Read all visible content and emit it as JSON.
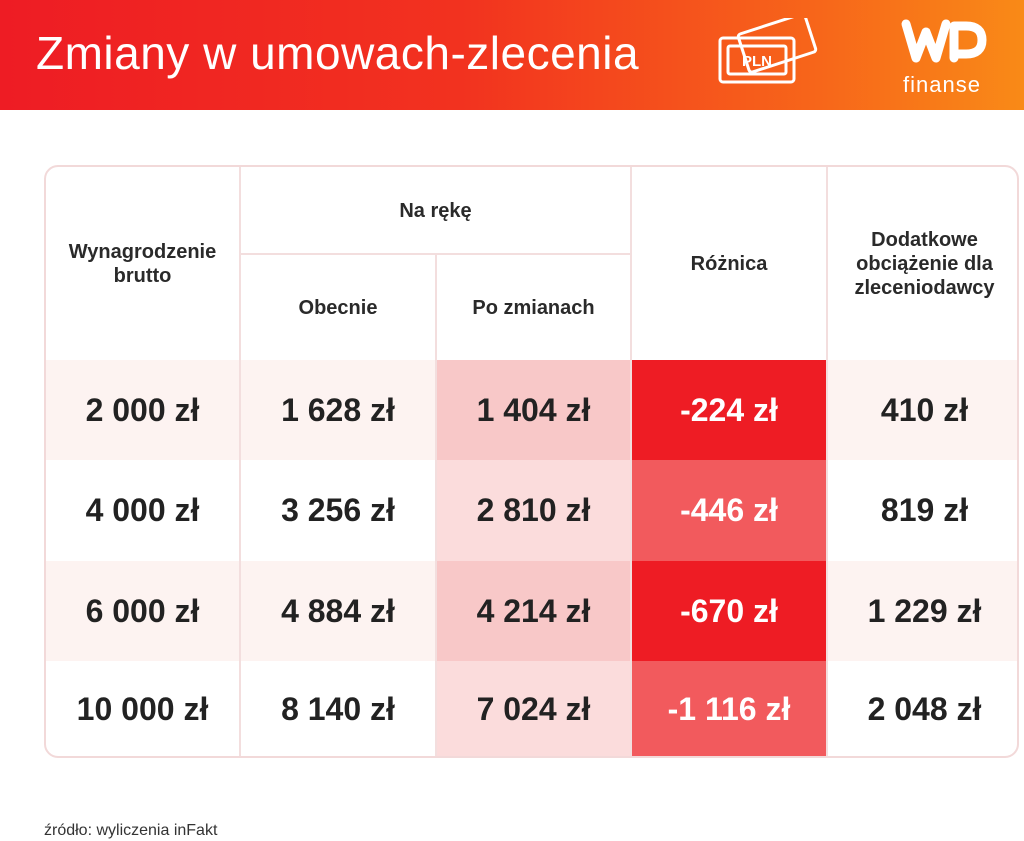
{
  "header": {
    "title": "Zmiany w umowach-zlecenia",
    "badge": "PLN",
    "logo": "finanse",
    "logo_icon": "wp-logo",
    "gradient": [
      "#ee1c24",
      "#f98a17"
    ]
  },
  "table": {
    "headers": {
      "gross": "Wynagrodzenie brutto",
      "net_group": "Na rękę",
      "current": "Obecnie",
      "after": "Po zmianach",
      "difference": "Różnica",
      "extra": "Dodatkowe obciążenie dla zleceniodawcy"
    },
    "rows": [
      {
        "gross": "2 000 zł",
        "current": "1 628 zł",
        "after": "1 404 zł",
        "difference": "-224 zł",
        "extra": "410 zł"
      },
      {
        "gross": "4 000 zł",
        "current": "3 256 zł",
        "after": "2 810 zł",
        "difference": "-446 zł",
        "extra": "819 zł"
      },
      {
        "gross": "6 000 zł",
        "current": "4 884 zł",
        "after": "4 214 zł",
        "difference": "-670 zł",
        "extra": "1 229 zł"
      },
      {
        "gross": "10 000 zł",
        "current": "8 140 zł",
        "after": "7 024 zł",
        "difference": "-1 116 zł",
        "extra": "2 048 zł"
      }
    ]
  },
  "colors": {
    "row_bg_light": "#fdf3f1",
    "after_dark": "#f8c8c8",
    "after_light": "#fbdcdc",
    "diff_strong": "#ee1c24",
    "diff_medium": "#f25a5d"
  },
  "source": "źródło: wyliczenia inFakt"
}
